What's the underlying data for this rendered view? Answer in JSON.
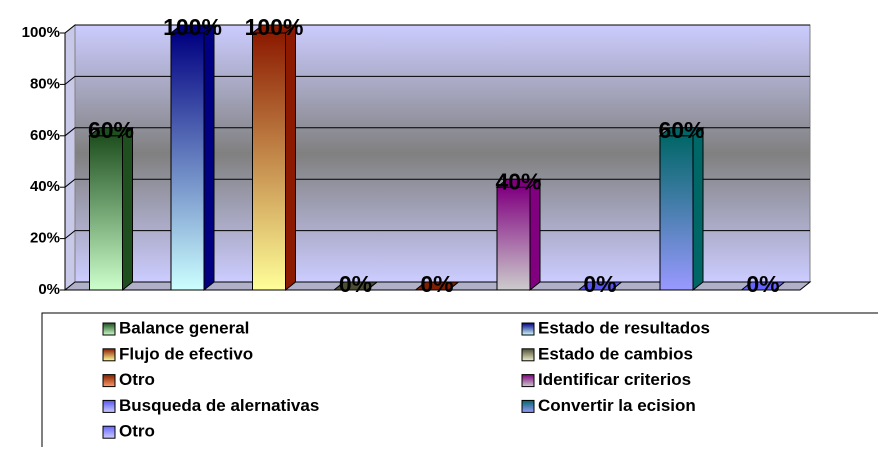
{
  "chart_data": {
    "type": "bar3d",
    "ylim": [
      0,
      100
    ],
    "yticks": [
      {
        "value": 0,
        "label": "0%"
      },
      {
        "value": 20,
        "label": "20%"
      },
      {
        "value": 40,
        "label": "40%"
      },
      {
        "value": 60,
        "label": "60%"
      },
      {
        "value": 80,
        "label": "80%"
      },
      {
        "value": 100,
        "label": "100%"
      }
    ],
    "grid": true,
    "legend": "bottom",
    "series": [
      {
        "name": "Balance general",
        "color": [
          "#1f4f1f",
          "#ccffcc"
        ],
        "values": [
          60
        ],
        "value_labels": [
          "60%"
        ]
      },
      {
        "name": "Estado de resultados",
        "color": [
          "#000080",
          "#ccffff"
        ],
        "values": [
          100
        ],
        "value_labels": [
          "100%"
        ]
      },
      {
        "name": "Flujo de efectivo",
        "color": [
          "#8b1a00",
          "#ffff99"
        ],
        "values": [
          100
        ],
        "value_labels": [
          "100%"
        ]
      },
      {
        "name": "Estado de cambios",
        "color": [
          "#4d4d33",
          "#eeeecc"
        ],
        "values": [
          0
        ],
        "value_labels": [
          "0%"
        ]
      },
      {
        "name": "Otro",
        "color": [
          "#802000",
          "#ff9966"
        ],
        "values": [
          0
        ],
        "value_labels": [
          "0%"
        ]
      },
      {
        "name": "Identificar criterios",
        "color": [
          "#800080",
          "#cccccc"
        ],
        "values": [
          40
        ],
        "value_labels": [
          "40%"
        ]
      },
      {
        "name": "Busqueda de alernativas",
        "color": [
          "#5555ee",
          "#ccccff"
        ],
        "values": [
          0
        ],
        "value_labels": [
          "0%"
        ]
      },
      {
        "name": "Convertir la ecision",
        "color": [
          "#006666",
          "#9999ff"
        ],
        "values": [
          60
        ],
        "value_labels": [
          "60%"
        ]
      },
      {
        "name": "Otro",
        "color": [
          "#6666ff",
          "#ccccff"
        ],
        "values": [
          0
        ],
        "value_labels": [
          "0%"
        ]
      }
    ]
  }
}
